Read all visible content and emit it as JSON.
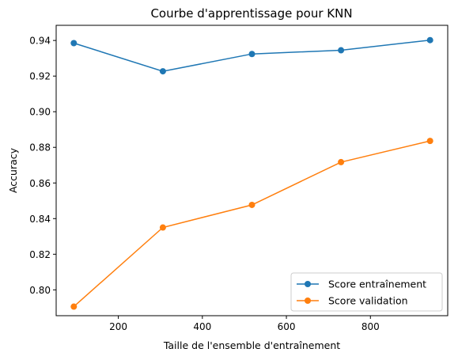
{
  "chart_data": {
    "type": "line",
    "title": "Courbe d'apprentissage pour KNN",
    "xlabel": "Taille de l'ensemble d'entraînement",
    "ylabel": "Accuracy",
    "x": [
      94,
      306,
      518,
      730,
      942
    ],
    "xlim": [
      52,
      984
    ],
    "ylim": [
      0.7855,
      0.9485
    ],
    "xticks": [
      200,
      400,
      600,
      800
    ],
    "yticks": [
      0.8,
      0.82,
      0.84,
      0.86,
      0.88,
      0.9,
      0.92,
      0.94
    ],
    "xtick_labels": [
      "200",
      "400",
      "600",
      "800"
    ],
    "ytick_labels": [
      "0.80",
      "0.82",
      "0.84",
      "0.86",
      "0.88",
      "0.90",
      "0.92",
      "0.94"
    ],
    "grid": false,
    "legend_position": "lower-right",
    "series": [
      {
        "name": "Score entraînement",
        "color": "#1f77b4",
        "marker": "circle",
        "values": [
          0.9385,
          0.9227,
          0.9324,
          0.9345,
          0.9402
        ]
      },
      {
        "name": "Score validation",
        "color": "#ff7f0e",
        "marker": "circle",
        "values": [
          0.7906,
          0.835,
          0.8477,
          0.8717,
          0.8836
        ]
      }
    ]
  }
}
